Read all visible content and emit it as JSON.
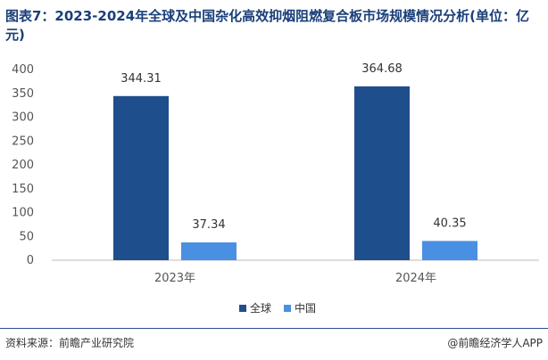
{
  "title": "图表7：2023-2024年全球及中国杂化高效抑烟阻燃复合板市场规模情况分析(单位：亿元)",
  "source": "资料来源：前瞻产业研究院",
  "brand": "@前瞻经济学人APP",
  "colors": {
    "global": "#1f4e8c",
    "china": "#4a90e2",
    "axis": "#bbbbbb"
  },
  "chart_data": {
    "type": "bar",
    "categories": [
      "2023年",
      "2024年"
    ],
    "series": [
      {
        "name": "全球",
        "values": [
          344.31,
          364.68
        ]
      },
      {
        "name": "中国",
        "values": [
          37.34,
          40.35
        ]
      }
    ],
    "value_labels": [
      [
        "344.31",
        "364.68"
      ],
      [
        "37.34",
        "40.35"
      ]
    ],
    "yticks": [
      "0",
      "50",
      "100",
      "150",
      "200",
      "250",
      "300",
      "350",
      "400"
    ],
    "ylim": [
      0,
      400
    ],
    "grid": false,
    "legend": "bottom-center"
  }
}
